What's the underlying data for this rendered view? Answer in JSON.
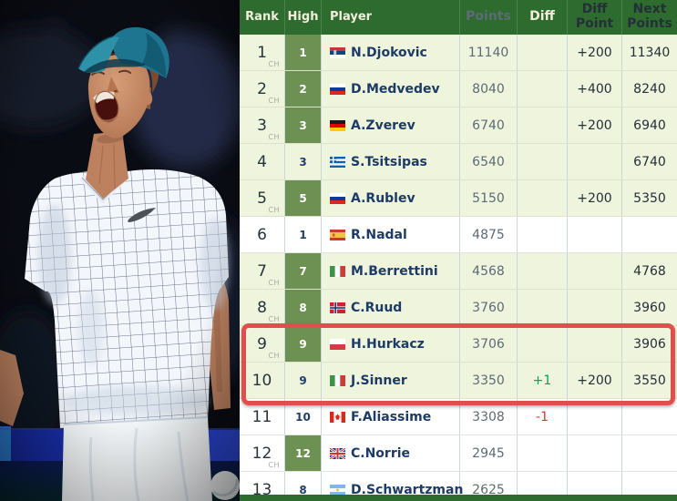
{
  "photo": {
    "alt": "Tennis player in a teal cap and white grid-patterned shirt screaming in celebration in a dark stadium"
  },
  "table": {
    "columns": [
      "Rank",
      "High",
      "Player",
      "Points",
      "Diff",
      "Diff Point",
      "Next Points"
    ],
    "ch_label": "CH",
    "rows": [
      {
        "rank": "1",
        "ch": true,
        "high": "1",
        "high_is_ch": true,
        "flag": "serbia",
        "player": "N.Djokovic",
        "points": "11140",
        "diff": "",
        "diff_dir": "",
        "diff_point": "+200",
        "next_points": "11340",
        "shaded": true,
        "highlighted": false
      },
      {
        "rank": "2",
        "ch": true,
        "high": "2",
        "high_is_ch": true,
        "flag": "russia",
        "player": "D.Medvedev",
        "points": "8040",
        "diff": "",
        "diff_dir": "",
        "diff_point": "+400",
        "next_points": "8240",
        "shaded": true,
        "highlighted": false
      },
      {
        "rank": "3",
        "ch": true,
        "high": "3",
        "high_is_ch": true,
        "flag": "germany",
        "player": "A.Zverev",
        "points": "6740",
        "diff": "",
        "diff_dir": "",
        "diff_point": "+200",
        "next_points": "6940",
        "shaded": true,
        "highlighted": false
      },
      {
        "rank": "4",
        "ch": false,
        "high": "3",
        "high_is_ch": false,
        "flag": "greece",
        "player": "S.Tsitsipas",
        "points": "6540",
        "diff": "",
        "diff_dir": "",
        "diff_point": "",
        "next_points": "6740",
        "shaded": true,
        "highlighted": false
      },
      {
        "rank": "5",
        "ch": true,
        "high": "5",
        "high_is_ch": true,
        "flag": "russia",
        "player": "A.Rublev",
        "points": "5150",
        "diff": "",
        "diff_dir": "",
        "diff_point": "+200",
        "next_points": "5350",
        "shaded": true,
        "highlighted": false
      },
      {
        "rank": "6",
        "ch": false,
        "high": "1",
        "high_is_ch": false,
        "flag": "spain",
        "player": "R.Nadal",
        "points": "4875",
        "diff": "",
        "diff_dir": "",
        "diff_point": "",
        "next_points": "",
        "shaded": false,
        "highlighted": false
      },
      {
        "rank": "7",
        "ch": true,
        "high": "7",
        "high_is_ch": true,
        "flag": "italy",
        "player": "M.Berrettini",
        "points": "4568",
        "diff": "",
        "diff_dir": "",
        "diff_point": "",
        "next_points": "4768",
        "shaded": true,
        "highlighted": false
      },
      {
        "rank": "8",
        "ch": true,
        "high": "8",
        "high_is_ch": true,
        "flag": "norway",
        "player": "C.Ruud",
        "points": "3760",
        "diff": "",
        "diff_dir": "",
        "diff_point": "",
        "next_points": "3960",
        "shaded": true,
        "highlighted": false
      },
      {
        "rank": "9",
        "ch": true,
        "high": "9",
        "high_is_ch": true,
        "flag": "poland",
        "player": "H.Hurkacz",
        "points": "3706",
        "diff": "",
        "diff_dir": "",
        "diff_point": "",
        "next_points": "3906",
        "shaded": true,
        "highlighted": true
      },
      {
        "rank": "10",
        "ch": false,
        "high": "9",
        "high_is_ch": false,
        "flag": "italy",
        "player": "J.Sinner",
        "points": "3350",
        "diff": "+1",
        "diff_dir": "up",
        "diff_point": "+200",
        "next_points": "3550",
        "shaded": true,
        "highlighted": true
      },
      {
        "rank": "11",
        "ch": false,
        "high": "10",
        "high_is_ch": false,
        "flag": "canada",
        "player": "F.Aliassime",
        "points": "3308",
        "diff": "-1",
        "diff_dir": "down",
        "diff_point": "",
        "next_points": "",
        "shaded": false,
        "highlighted": false
      },
      {
        "rank": "12",
        "ch": true,
        "high": "12",
        "high_is_ch": true,
        "flag": "uk",
        "player": "C.Norrie",
        "points": "2945",
        "diff": "",
        "diff_dir": "",
        "diff_point": "",
        "next_points": "",
        "shaded": false,
        "highlighted": false
      },
      {
        "rank": "13",
        "ch": false,
        "high": "8",
        "high_is_ch": false,
        "flag": "argentina",
        "player": "D.Schwartzman",
        "points": "2625",
        "diff": "",
        "diff_dir": "",
        "diff_point": "",
        "next_points": "",
        "shaded": false,
        "highlighted": false
      }
    ]
  },
  "highlight": {
    "rows": [
      "9",
      "10"
    ]
  },
  "colors": {
    "header_green": "#2e6b2f",
    "career_high_green": "#6d9053",
    "shaded_row": "#eff4dd",
    "white_row": "#ffffff",
    "highlight_border": "#e04f4d",
    "diff_up": "#00a651",
    "diff_down": "#e03535"
  }
}
